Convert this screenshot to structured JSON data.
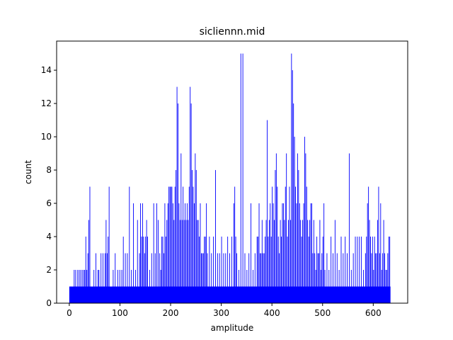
{
  "chart_data": {
    "type": "bar",
    "title": "sicliennn.mid",
    "xlabel": "amplitude",
    "ylabel": "count",
    "xlim": [
      -25,
      668
    ],
    "ylim": [
      0,
      15.75
    ],
    "x_ticks": [
      0,
      100,
      200,
      300,
      400,
      500,
      600
    ],
    "y_ticks": [
      0,
      2,
      4,
      6,
      8,
      10,
      12,
      14
    ],
    "bar_color": "#0000ff",
    "grid": false,
    "baseline": {
      "from": 0,
      "to": 634,
      "value": 1
    },
    "bars": [
      [
        9,
        2
      ],
      [
        12,
        2
      ],
      [
        16,
        2
      ],
      [
        19,
        2
      ],
      [
        22,
        2
      ],
      [
        25,
        2
      ],
      [
        28,
        2
      ],
      [
        30,
        2
      ],
      [
        32,
        4
      ],
      [
        34,
        2
      ],
      [
        36,
        3
      ],
      [
        38,
        5
      ],
      [
        40,
        7
      ],
      [
        48,
        2
      ],
      [
        52,
        3
      ],
      [
        56,
        2
      ],
      [
        58,
        2
      ],
      [
        62,
        3
      ],
      [
        66,
        3
      ],
      [
        70,
        3
      ],
      [
        72,
        5
      ],
      [
        74,
        3
      ],
      [
        76,
        4
      ],
      [
        78,
        7
      ],
      [
        86,
        2
      ],
      [
        90,
        3
      ],
      [
        95,
        2
      ],
      [
        99,
        2
      ],
      [
        103,
        2
      ],
      [
        106,
        4
      ],
      [
        110,
        3
      ],
      [
        114,
        3
      ],
      [
        118,
        7
      ],
      [
        122,
        2
      ],
      [
        126,
        6
      ],
      [
        130,
        2
      ],
      [
        134,
        5
      ],
      [
        138,
        3
      ],
      [
        140,
        6
      ],
      [
        142,
        4
      ],
      [
        144,
        6
      ],
      [
        146,
        4
      ],
      [
        148,
        3
      ],
      [
        150,
        4
      ],
      [
        152,
        5
      ],
      [
        154,
        4
      ],
      [
        158,
        2
      ],
      [
        162,
        3
      ],
      [
        166,
        6
      ],
      [
        169,
        3
      ],
      [
        172,
        6
      ],
      [
        175,
        5
      ],
      [
        178,
        3
      ],
      [
        180,
        2
      ],
      [
        182,
        4
      ],
      [
        184,
        4
      ],
      [
        186,
        3
      ],
      [
        188,
        6
      ],
      [
        190,
        4
      ],
      [
        192,
        5
      ],
      [
        194,
        6
      ],
      [
        196,
        7
      ],
      [
        198,
        7
      ],
      [
        200,
        7
      ],
      [
        202,
        7
      ],
      [
        204,
        6
      ],
      [
        206,
        5
      ],
      [
        208,
        7
      ],
      [
        210,
        8
      ],
      [
        212,
        13
      ],
      [
        214,
        12
      ],
      [
        216,
        6
      ],
      [
        218,
        5
      ],
      [
        220,
        9
      ],
      [
        222,
        5
      ],
      [
        224,
        7
      ],
      [
        226,
        5
      ],
      [
        228,
        6
      ],
      [
        230,
        5
      ],
      [
        232,
        6
      ],
      [
        234,
        5
      ],
      [
        236,
        7
      ],
      [
        238,
        13
      ],
      [
        240,
        12
      ],
      [
        242,
        8
      ],
      [
        244,
        7
      ],
      [
        246,
        6
      ],
      [
        248,
        9
      ],
      [
        250,
        8
      ],
      [
        252,
        5
      ],
      [
        254,
        5
      ],
      [
        256,
        4
      ],
      [
        258,
        6
      ],
      [
        260,
        3
      ],
      [
        262,
        3
      ],
      [
        264,
        3
      ],
      [
        266,
        4
      ],
      [
        268,
        4
      ],
      [
        270,
        6
      ],
      [
        272,
        3
      ],
      [
        276,
        4
      ],
      [
        280,
        3
      ],
      [
        284,
        4
      ],
      [
        288,
        8
      ],
      [
        292,
        3
      ],
      [
        296,
        3
      ],
      [
        300,
        4
      ],
      [
        304,
        3
      ],
      [
        308,
        3
      ],
      [
        312,
        4
      ],
      [
        316,
        3
      ],
      [
        320,
        4
      ],
      [
        324,
        6
      ],
      [
        326,
        7
      ],
      [
        328,
        4
      ],
      [
        330,
        3
      ],
      [
        334,
        2
      ],
      [
        338,
        15
      ],
      [
        342,
        15
      ],
      [
        346,
        3
      ],
      [
        350,
        2
      ],
      [
        354,
        3
      ],
      [
        358,
        6
      ],
      [
        362,
        2
      ],
      [
        366,
        3
      ],
      [
        370,
        4
      ],
      [
        372,
        4
      ],
      [
        374,
        6
      ],
      [
        376,
        3
      ],
      [
        378,
        3
      ],
      [
        380,
        5
      ],
      [
        382,
        3
      ],
      [
        384,
        3
      ],
      [
        386,
        4
      ],
      [
        388,
        5
      ],
      [
        390,
        11
      ],
      [
        392,
        4
      ],
      [
        394,
        5
      ],
      [
        396,
        6
      ],
      [
        398,
        4
      ],
      [
        400,
        7
      ],
      [
        402,
        6
      ],
      [
        404,
        5
      ],
      [
        406,
        8
      ],
      [
        408,
        9
      ],
      [
        410,
        7
      ],
      [
        412,
        4
      ],
      [
        414,
        3
      ],
      [
        416,
        5
      ],
      [
        418,
        4
      ],
      [
        420,
        6
      ],
      [
        422,
        6
      ],
      [
        424,
        5
      ],
      [
        426,
        7
      ],
      [
        428,
        9
      ],
      [
        430,
        4
      ],
      [
        432,
        5
      ],
      [
        434,
        7
      ],
      [
        436,
        5
      ],
      [
        438,
        15
      ],
      [
        440,
        14
      ],
      [
        442,
        12
      ],
      [
        444,
        10
      ],
      [
        446,
        7
      ],
      [
        448,
        6
      ],
      [
        450,
        9
      ],
      [
        452,
        8
      ],
      [
        454,
        6
      ],
      [
        456,
        5
      ],
      [
        458,
        4
      ],
      [
        460,
        5
      ],
      [
        462,
        6
      ],
      [
        464,
        10
      ],
      [
        466,
        9
      ],
      [
        468,
        7
      ],
      [
        470,
        5
      ],
      [
        472,
        4
      ],
      [
        474,
        5
      ],
      [
        476,
        6
      ],
      [
        478,
        6
      ],
      [
        480,
        3
      ],
      [
        482,
        5
      ],
      [
        484,
        3
      ],
      [
        486,
        2
      ],
      [
        488,
        4
      ],
      [
        490,
        3
      ],
      [
        492,
        3
      ],
      [
        494,
        5
      ],
      [
        496,
        2
      ],
      [
        498,
        3
      ],
      [
        500,
        4
      ],
      [
        502,
        6
      ],
      [
        504,
        2
      ],
      [
        508,
        3
      ],
      [
        512,
        2
      ],
      [
        516,
        4
      ],
      [
        520,
        3
      ],
      [
        524,
        5
      ],
      [
        528,
        3
      ],
      [
        532,
        2
      ],
      [
        536,
        4
      ],
      [
        540,
        3
      ],
      [
        544,
        4
      ],
      [
        548,
        3
      ],
      [
        552,
        9
      ],
      [
        556,
        2
      ],
      [
        560,
        3
      ],
      [
        564,
        4
      ],
      [
        568,
        4
      ],
      [
        572,
        4
      ],
      [
        576,
        4
      ],
      [
        580,
        2
      ],
      [
        584,
        3
      ],
      [
        586,
        4
      ],
      [
        588,
        6
      ],
      [
        590,
        7
      ],
      [
        592,
        5
      ],
      [
        594,
        4
      ],
      [
        596,
        3
      ],
      [
        598,
        4
      ],
      [
        600,
        2
      ],
      [
        602,
        4
      ],
      [
        604,
        3
      ],
      [
        606,
        3
      ],
      [
        608,
        5
      ],
      [
        610,
        7
      ],
      [
        612,
        3
      ],
      [
        614,
        6
      ],
      [
        616,
        2
      ],
      [
        618,
        3
      ],
      [
        620,
        5
      ],
      [
        622,
        3
      ],
      [
        624,
        2
      ],
      [
        626,
        2
      ],
      [
        628,
        3
      ],
      [
        630,
        4
      ],
      [
        632,
        4
      ]
    ]
  }
}
